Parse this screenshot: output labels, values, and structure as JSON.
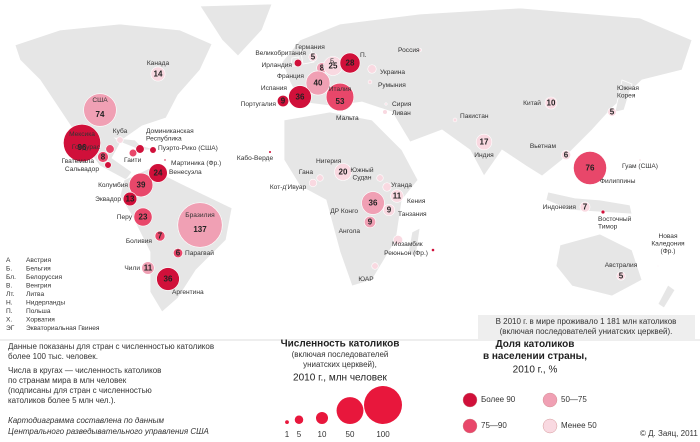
{
  "total_note": [
    "В 2010 г. в мире проживало 1 181 млн католиков",
    "(включая последователей униатских церквей)."
  ],
  "countries": [
    {
      "label": "Канада",
      "value": 14,
      "color": "#f9d9e1"
    },
    {
      "label": "США",
      "value": 74,
      "color": "#f0a0b4"
    },
    {
      "label": "Мексика",
      "value": 96,
      "color": "#d0103a"
    },
    {
      "label": "Гватемала",
      "value": 8,
      "color": "#e8476a"
    },
    {
      "label": "Колумбия",
      "value": 39,
      "color": "#e8476a"
    },
    {
      "label": "Венесуэла",
      "value": 24,
      "color": "#d0103a"
    },
    {
      "label": "Эквадор",
      "value": 13,
      "color": "#d0103a"
    },
    {
      "label": "Перу",
      "value": 23,
      "color": "#e8476a"
    },
    {
      "label": "Бразилия",
      "value": 137,
      "color": "#f0a0b4"
    },
    {
      "label": "Боливия",
      "value": 7,
      "color": "#e8476a"
    },
    {
      "label": "Парагвай",
      "value": 6,
      "color": "#e8476a"
    },
    {
      "label": "Чили",
      "value": 11,
      "color": "#f0a0b4"
    },
    {
      "label": "Аргентина",
      "value": 36,
      "color": "#d0103a"
    },
    {
      "label": "Великобритания",
      "value": 5,
      "color": "#f9d9e1"
    },
    {
      "label": "Б.",
      "value": 8,
      "color": "#f0a0b4"
    },
    {
      "label": "Франция",
      "value": 40,
      "color": "#f0a0b4"
    },
    {
      "label": "Испания",
      "value": 36,
      "color": "#d0103a"
    },
    {
      "label": "Португалия",
      "value": 9,
      "color": "#d0103a"
    },
    {
      "label": "Германия",
      "value": 25,
      "color": "#f9d9e1"
    },
    {
      "label": "П.",
      "value": 28,
      "color": "#d0103a"
    },
    {
      "label": "Италия",
      "value": 53,
      "color": "#e8476a"
    },
    {
      "label": "Нигерия",
      "value": 20,
      "color": "#f9d9e1"
    },
    {
      "label": "ДР Конго",
      "value": 36,
      "color": "#f0a0b4"
    },
    {
      "label": "Кения",
      "value": 11,
      "color": "#f9d9e1"
    },
    {
      "label": "Танзания",
      "value": 9,
      "color": "#f9d9e1"
    },
    {
      "label": "Ангола",
      "value": 9,
      "color": "#f0a0b4"
    },
    {
      "label": "Индия",
      "value": 17,
      "color": "#f9d9e1"
    },
    {
      "label": "Китай",
      "value": 10,
      "color": "#f9d9e1"
    },
    {
      "label": "Вьетнам",
      "value": 6,
      "color": "#f9d9e1"
    },
    {
      "label": "Филиппины",
      "value": 76,
      "color": "#e8476a"
    },
    {
      "label": "Индонезия",
      "value": 7,
      "color": "#f9d9e1"
    },
    {
      "label": [
        "Южная",
        "Корея"
      ],
      "value": 5,
      "color": "#f9d9e1"
    },
    {
      "label": "Австралия",
      "value": 5,
      "color": "#f9d9e1"
    }
  ],
  "small_countries": [
    {
      "label": "Куба",
      "value": 3,
      "color": "#f9d9e1"
    },
    {
      "label": [
        "Доминиканская",
        "Республика"
      ],
      "value": 5,
      "color": "#d0103a"
    },
    {
      "label": "Пуэрто-Рико (США)",
      "value": 3,
      "color": "#d0103a"
    },
    {
      "label": "Гаити",
      "value": 4,
      "color": "#e8476a"
    },
    {
      "label": "Гондурас",
      "value": 5,
      "color": "#e8476a"
    },
    {
      "label": "Сальвадор",
      "value": 3,
      "color": "#d0103a"
    },
    {
      "label": "Мартиника (Фр.)",
      "value": 0.3,
      "color": "#d0103a"
    },
    {
      "label": "Ирландия",
      "value": 4,
      "color": "#d0103a"
    },
    {
      "label": "Мальта",
      "value": 0.4,
      "color": "#d0103a"
    },
    {
      "label": "Украина",
      "value": 5,
      "color": "#f9d9e1"
    },
    {
      "label": "Румыния",
      "value": 1,
      "color": "#f9d9e1"
    },
    {
      "label": "Кабо-Верде",
      "value": 0.5,
      "color": "#d0103a"
    },
    {
      "label": "Гана",
      "value": 3,
      "color": "#f9d9e1"
    },
    {
      "label": "Кот-д'Ивуар",
      "value": 4,
      "color": "#f9d9e1"
    },
    {
      "label": [
        "Южный",
        "Судан"
      ],
      "value": 3,
      "color": "#f9d9e1"
    },
    {
      "label": "Уганда",
      "value": 5,
      "color": "#f9d9e1"
    },
    {
      "label": "Мозамбик",
      "value": 6,
      "color": "#f9d9e1"
    },
    {
      "label": "ЮАР",
      "value": 3,
      "color": "#f9d9e1"
    },
    {
      "label": "Реюньон (Фр.)",
      "value": 0.7,
      "color": "#d0103a"
    },
    {
      "label": "Сирия",
      "value": 0.4,
      "color": "#f9d9e1"
    },
    {
      "label": "Ливан",
      "value": 1.5,
      "color": "#f9d9e1"
    },
    {
      "label": "Пакистан",
      "value": 1,
      "color": "#f9d9e1"
    },
    {
      "label": [
        "Восточный",
        "Тимор"
      ],
      "value": 1,
      "color": "#d0103a"
    },
    {
      "label": "Гуам (США)",
      "value": 0.1,
      "color": "#d0103a"
    },
    {
      "label": [
        "Новая",
        "Каледония",
        "(Фр.)"
      ],
      "value": 0.1,
      "color": "#f9d9e1"
    },
    {
      "label": "Россия",
      "value": 0.7,
      "color": "#f9d9e1"
    }
  ],
  "abbreviations": [
    [
      "А",
      "Австрия"
    ],
    [
      "Б.",
      "Бельгия"
    ],
    [
      "Бл.",
      "Белоруссия"
    ],
    [
      "В.",
      "Венгрия"
    ],
    [
      "Лт.",
      "Литва"
    ],
    [
      "Н.",
      "Нидерланды"
    ],
    [
      "П.",
      "Польша"
    ],
    [
      "Х.",
      "Хорватия"
    ],
    [
      "ЭГ",
      "Экваториальная Гвинея"
    ]
  ],
  "notes": [
    [
      "Данные показаны для стран с численностью католиков",
      "более 100 тыс. человек."
    ],
    [
      "Числа в кругах — численность католиков",
      "по странам мира в млн человек",
      "(подписаны для стран с численностью",
      "католиков более 5 млн чел.)."
    ]
  ],
  "source": [
    "Картодиаграмма составлена по данным",
    "Центрального разведывательного управления США"
  ],
  "credit": "© Д. Заяц, 2011",
  "size_legend": {
    "title": "Численность католиков",
    "subtitle": [
      "(включая последователей",
      "униатских церквей),"
    ],
    "unit": "2010 г., млн человек",
    "color": "#e8173c",
    "values": [
      1,
      5,
      10,
      50,
      100
    ]
  },
  "share_legend": {
    "title": [
      "Доля католиков",
      "в населении страны,"
    ],
    "unit": "2010 г., %",
    "items": [
      {
        "label": "Более 90",
        "color": "#d0103a"
      },
      {
        "label": "50—75",
        "color": "#f0a0b4"
      },
      {
        "label": "75—90",
        "color": "#e8476a"
      },
      {
        "label": "Менее 50",
        "color": "#f9d9e1"
      }
    ]
  }
}
